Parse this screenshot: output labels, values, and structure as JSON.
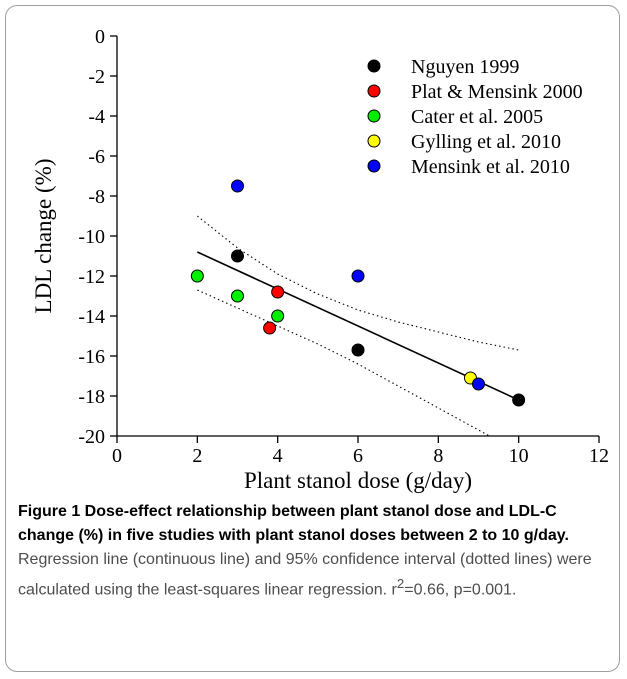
{
  "chart_data": {
    "type": "scatter",
    "xlabel": "Plant stanol dose (g/day)",
    "ylabel": "LDL change (%)",
    "xlim": [
      0,
      12
    ],
    "ylim": [
      -20,
      0
    ],
    "x_ticks": [
      0,
      2,
      4,
      6,
      8,
      10,
      12
    ],
    "y_ticks": [
      0,
      -2,
      -4,
      -6,
      -8,
      -10,
      -12,
      -14,
      -16,
      -18,
      -20
    ],
    "grid": false,
    "legend_position": "top-right",
    "series": [
      {
        "name": "Nguyen 1999",
        "color": "#000000",
        "points": [
          [
            3,
            -11.0
          ],
          [
            6,
            -15.7
          ],
          [
            10,
            -18.2
          ]
        ]
      },
      {
        "name": "Plat & Mensink 2000",
        "color": "#ff0000",
        "points": [
          [
            4,
            -12.8
          ],
          [
            3.8,
            -14.6
          ]
        ]
      },
      {
        "name": "Cater et al. 2005",
        "color": "#00ee00",
        "points": [
          [
            2,
            -12.0
          ],
          [
            3,
            -13.0
          ],
          [
            4,
            -14.0
          ]
        ]
      },
      {
        "name": "Gylling et al. 2010",
        "color": "#ffff00",
        "points": [
          [
            8.8,
            -17.1
          ]
        ]
      },
      {
        "name": "Mensink et al. 2010",
        "color": "#0000ff",
        "points": [
          [
            3,
            -7.5
          ],
          [
            6,
            -12.0
          ],
          [
            9,
            -17.4
          ]
        ]
      }
    ],
    "regression_line": {
      "x": [
        2,
        10
      ],
      "y": [
        -10.8,
        -18.2
      ]
    },
    "confidence_upper": {
      "x": [
        2,
        3,
        4,
        5,
        6,
        7,
        8,
        9,
        10
      ],
      "y": [
        -9.0,
        -10.6,
        -11.9,
        -12.9,
        -13.7,
        -14.3,
        -14.8,
        -15.3,
        -15.7
      ]
    },
    "confidence_lower": {
      "x": [
        2,
        3,
        4,
        5,
        6,
        7,
        8,
        9,
        10
      ],
      "y": [
        -12.7,
        -13.6,
        -14.5,
        -15.4,
        -16.4,
        -17.5,
        -18.6,
        -19.7,
        -20.8
      ]
    }
  },
  "caption": {
    "title": "Figure 1 Dose-effect relationship between plant stanol dose and LDL-C change (%) in five studies with plant stanol doses between 2 to 10 g/day.",
    "body_main": " Regression line (continuous line) and 95% confidence interval (dotted lines) were calculated using the least-squares linear regression. r",
    "r_superscript": "2",
    "body_end": "=0.66, p=0.001."
  }
}
